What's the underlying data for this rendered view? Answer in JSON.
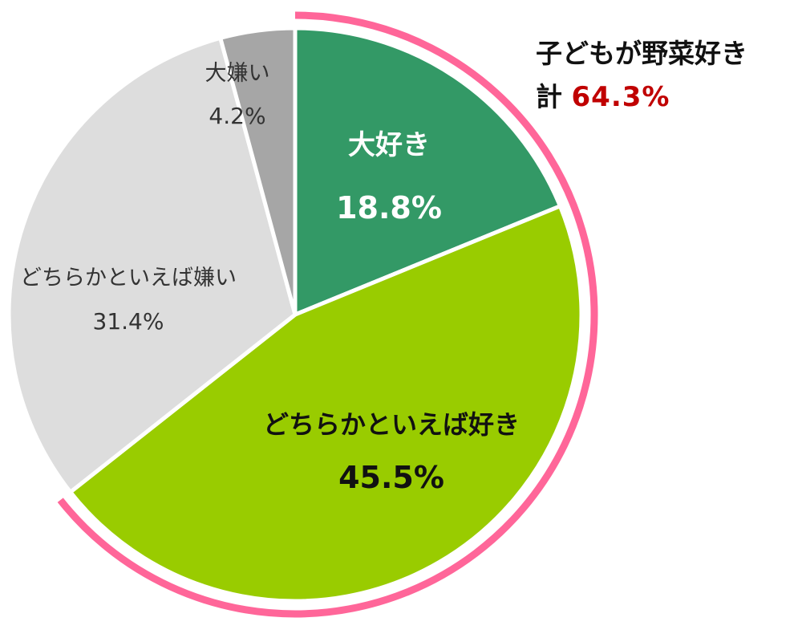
{
  "chart_data": {
    "type": "pie",
    "title": "",
    "start_angle_deg": 0,
    "direction": "clockwise",
    "slices": [
      {
        "label": "大好き",
        "value_label": "18.8%",
        "value": 18.8,
        "color": "#339966",
        "text_color": "#ffffff",
        "bold": true
      },
      {
        "label": "どちらかといえば好き",
        "value_label": "45.5%",
        "value": 45.5,
        "color": "#99cc00",
        "text_color": "#111111",
        "bold": true
      },
      {
        "label": "どちらかといえば嫌い",
        "value_label": "31.4%",
        "value": 31.4,
        "color": "#dddddd",
        "text_color": "#333333",
        "bold": false
      },
      {
        "label": "大嫌い",
        "value_label": "4.2%",
        "value": 4.2,
        "color": "#a6a6a6",
        "text_color": "#333333",
        "bold": false
      }
    ],
    "highlight": {
      "covers": [
        "大好き",
        "どちらかといえば好き"
      ],
      "color": "#ff6699",
      "line1": "子どもが野菜好き",
      "prefix": "計",
      "value_label": "64.3%",
      "value": 64.3,
      "value_color": "#c00000"
    }
  }
}
